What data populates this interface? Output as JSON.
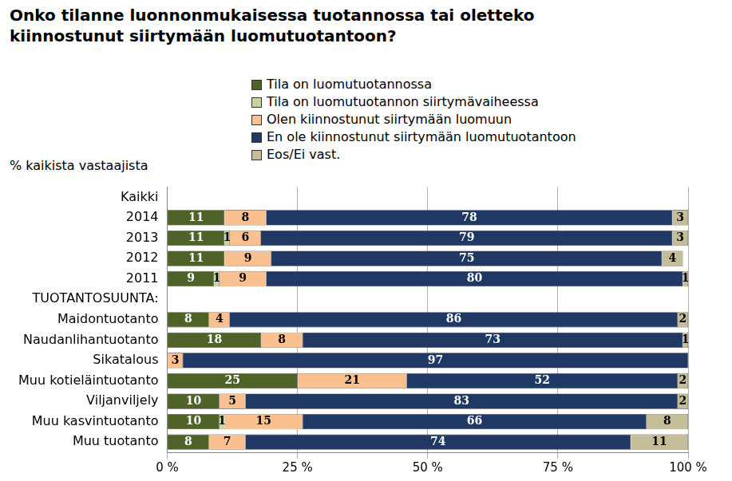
{
  "chart_data": {
    "type": "bar",
    "title": "Onko tilanne luonnonmukaisessa tuotannossa tai oletteko kiinnostunut siirtymään luomutuotantoon?",
    "annotations": [
      "% kaikista vastaajista"
    ],
    "categories": [
      "Kaikki",
      "2014",
      "2013",
      "2012",
      "2011",
      "TUOTANTOSUUNTA:",
      "Maidontuotanto",
      "Naudanlihantuotanto",
      "Sikatalous",
      "Muu kotieläintuotanto",
      "Viljanviljely",
      "Muu kasvintuotanto",
      "Muu tuotanto"
    ],
    "series": [
      {
        "name": "Tila on luomutuotannossa",
        "color": "#4f6228",
        "values": [
          null,
          11,
          11,
          11,
          9,
          null,
          8,
          18,
          null,
          25,
          10,
          10,
          8
        ]
      },
      {
        "name": "Tila on luomutuotannon siirtymävaiheessa",
        "color": "#c3d69b",
        "values": [
          null,
          null,
          1,
          null,
          1,
          null,
          null,
          null,
          null,
          null,
          null,
          1,
          null
        ]
      },
      {
        "name": "Olen kiinnostunut siirtymään luomuun",
        "color": "#fac090",
        "values": [
          null,
          8,
          6,
          9,
          9,
          null,
          4,
          8,
          3,
          21,
          5,
          15,
          7
        ]
      },
      {
        "name": "En ole kiinnostunut siirtymään luomutuotantoon",
        "color": "#1f3864",
        "values": [
          null,
          78,
          79,
          75,
          80,
          null,
          86,
          73,
          97,
          52,
          83,
          66,
          74
        ]
      },
      {
        "name": "Eos/Ei vast.",
        "color": "#c4bd97",
        "values": [
          null,
          3,
          3,
          4,
          1,
          null,
          2,
          1,
          null,
          2,
          2,
          8,
          11
        ]
      }
    ],
    "xlim": [
      0,
      100
    ],
    "xticks": [
      {
        "value": 0,
        "label": "0 %"
      },
      {
        "value": 25,
        "label": "25 %"
      },
      {
        "value": 50,
        "label": "50 %"
      },
      {
        "value": 75,
        "label": "75 %"
      },
      {
        "value": 100,
        "label": "100 %"
      }
    ],
    "orientation": "horizontal",
    "stacked": true,
    "data_labels": true,
    "grid": true,
    "legend": "top"
  }
}
